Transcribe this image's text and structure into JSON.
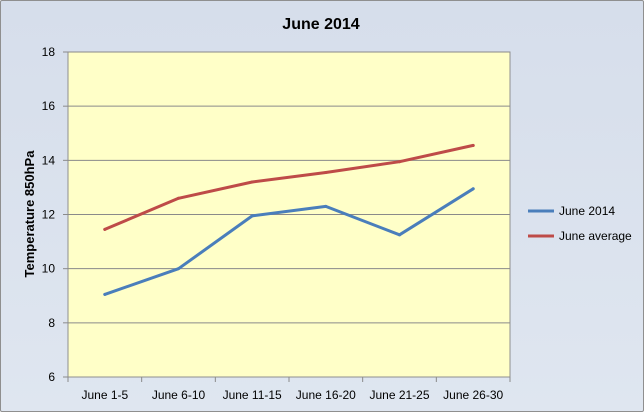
{
  "chart_data": {
    "type": "line",
    "title": "June 2014",
    "ylabel": "Temperature 850hPa",
    "xlabel": "",
    "categories": [
      "June 1-5",
      "June 6-10",
      "June 11-15",
      "June 16-20",
      "June 21-25",
      "June 26-30"
    ],
    "ylim": [
      6,
      18
    ],
    "yticks": [
      6,
      8,
      10,
      12,
      14,
      16,
      18
    ],
    "grid": true,
    "legend_position": "right",
    "plot_background": "#ffffc8",
    "series": [
      {
        "name": "June 2014",
        "color": "#4a7ebb",
        "values": [
          9.05,
          10.0,
          11.95,
          12.3,
          11.25,
          12.95
        ]
      },
      {
        "name": "June average",
        "color": "#be4b48",
        "values": [
          11.45,
          12.6,
          13.2,
          13.55,
          13.95,
          14.55
        ]
      }
    ]
  }
}
